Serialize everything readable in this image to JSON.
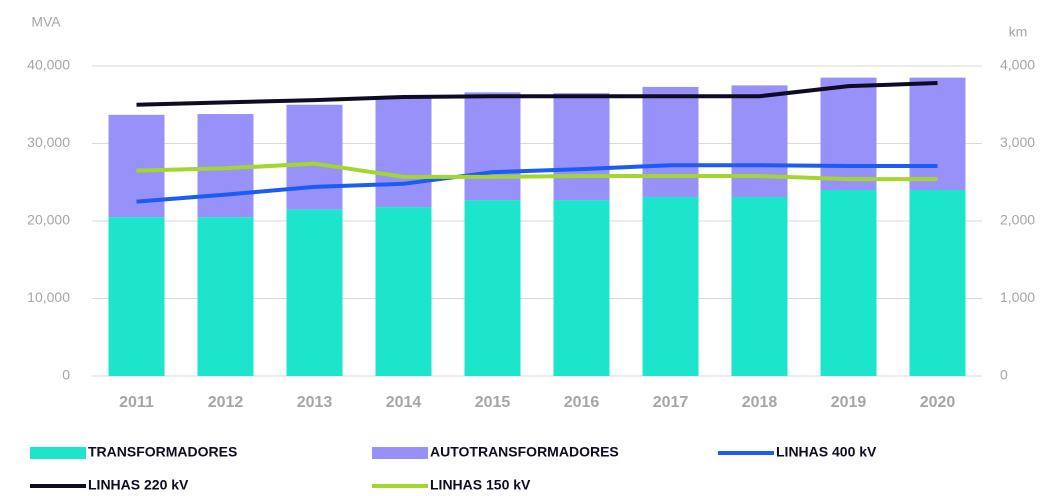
{
  "chart_data": {
    "type": "bar_line",
    "y_label": "MVA",
    "y2_label": "km",
    "categories": [
      "2011",
      "2012",
      "2013",
      "2014",
      "2015",
      "2016",
      "2017",
      "2018",
      "2019",
      "2020"
    ],
    "series": [
      {
        "name": "TRANSFORMADORES",
        "color": "#1de5cc",
        "kind": "bar",
        "values": [
          20500,
          20500,
          21500,
          21800,
          22700,
          22700,
          23100,
          23100,
          24000,
          24000
        ]
      },
      {
        "name": "AUTOTRANSFORMADORES",
        "color": "#9891fa",
        "kind": "bar",
        "values": [
          13200,
          13300,
          13500,
          14200,
          13900,
          13800,
          14200,
          14400,
          14500,
          14500
        ]
      },
      {
        "name": "LINHAS 400 kV",
        "color": "#1a5cf5",
        "kind": "line",
        "axis": "y2",
        "values": [
          2250,
          2340,
          2440,
          2480,
          2630,
          2670,
          2720,
          2720,
          2710,
          2710
        ]
      },
      {
        "name": "LINHAS 220 kV",
        "color": "#0d0c22",
        "kind": "line",
        "axis": "y2",
        "values": [
          3500,
          3530,
          3560,
          3600,
          3610,
          3610,
          3610,
          3610,
          3740,
          3780
        ]
      },
      {
        "name": "LINHAS 150 kV",
        "color": "#a4d62f",
        "kind": "line",
        "axis": "y2",
        "values": [
          2650,
          2680,
          2740,
          2570,
          2570,
          2580,
          2580,
          2580,
          2540,
          2540
        ]
      }
    ],
    "ylim": [
      0,
      40000
    ],
    "yticks": [
      0,
      {
        "value": 10000,
        "label": "10,000"
      },
      {
        "value": 20000,
        "label": "20,000"
      },
      {
        "value": 30000,
        "label": "30,000"
      },
      {
        "value": 40000,
        "label": "40,000"
      }
    ],
    "y2lim": [
      0,
      4000
    ],
    "y2ticks": [
      0,
      {
        "value": 1000,
        "label": "1,000"
      },
      {
        "value": 2000,
        "label": "2,000"
      },
      {
        "value": 3000,
        "label": "3,000"
      },
      {
        "value": 4000,
        "label": "4,000"
      }
    ],
    "grid": true,
    "legend": "bottom"
  }
}
